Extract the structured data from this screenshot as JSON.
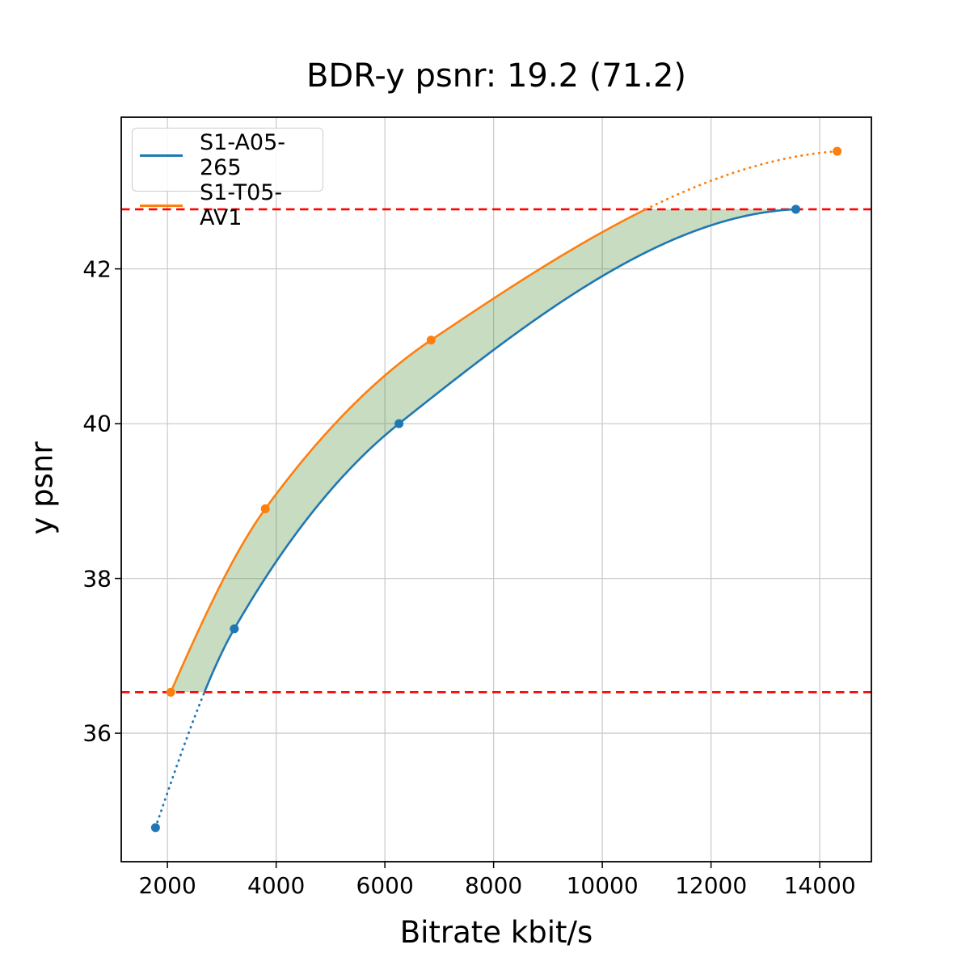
{
  "chart_data": {
    "type": "line",
    "title": "BDR-y psnr: 19.2 (71.2)",
    "bdr_value": 19.2,
    "bdr_value_secondary": 71.2,
    "xlabel": "Bitrate kbit/s",
    "ylabel": "y psnr",
    "xlim": [
      1150,
      14950
    ],
    "ylim": [
      34.34,
      43.96
    ],
    "xticks": [
      2000,
      4000,
      6000,
      8000,
      10000,
      12000,
      14000
    ],
    "yticks": [
      36,
      38,
      40,
      42
    ],
    "grid": true,
    "grid_color": "#cccccc",
    "spine_color": "#000000",
    "legend_position": "upper-left",
    "series": [
      {
        "name": "S1-A05-265",
        "color": "#1f77b4",
        "marker": "o",
        "points": [
          [
            1780,
            34.78
          ],
          [
            3230,
            37.35
          ],
          [
            6260,
            40.0
          ],
          [
            13560,
            42.77
          ]
        ]
      },
      {
        "name": "S1-T05-AV1",
        "color": "#ff7f0e",
        "marker": "o",
        "points": [
          [
            2060,
            36.53
          ],
          [
            3800,
            38.9
          ],
          [
            6850,
            41.08
          ],
          [
            14320,
            43.52
          ]
        ]
      }
    ],
    "overlap_interval": {
      "psnr_low": 36.53,
      "psnr_high": 42.77,
      "line_color": "#ff0000",
      "line_style": "dashed"
    },
    "shaded_region": {
      "fill_color": "rgba(70,138,45,0.30)",
      "between": [
        "S1-T05-AV1",
        "S1-A05-265"
      ]
    },
    "curve_style": {
      "solid_within_interval": true,
      "dotted_outside_interval": true
    }
  }
}
